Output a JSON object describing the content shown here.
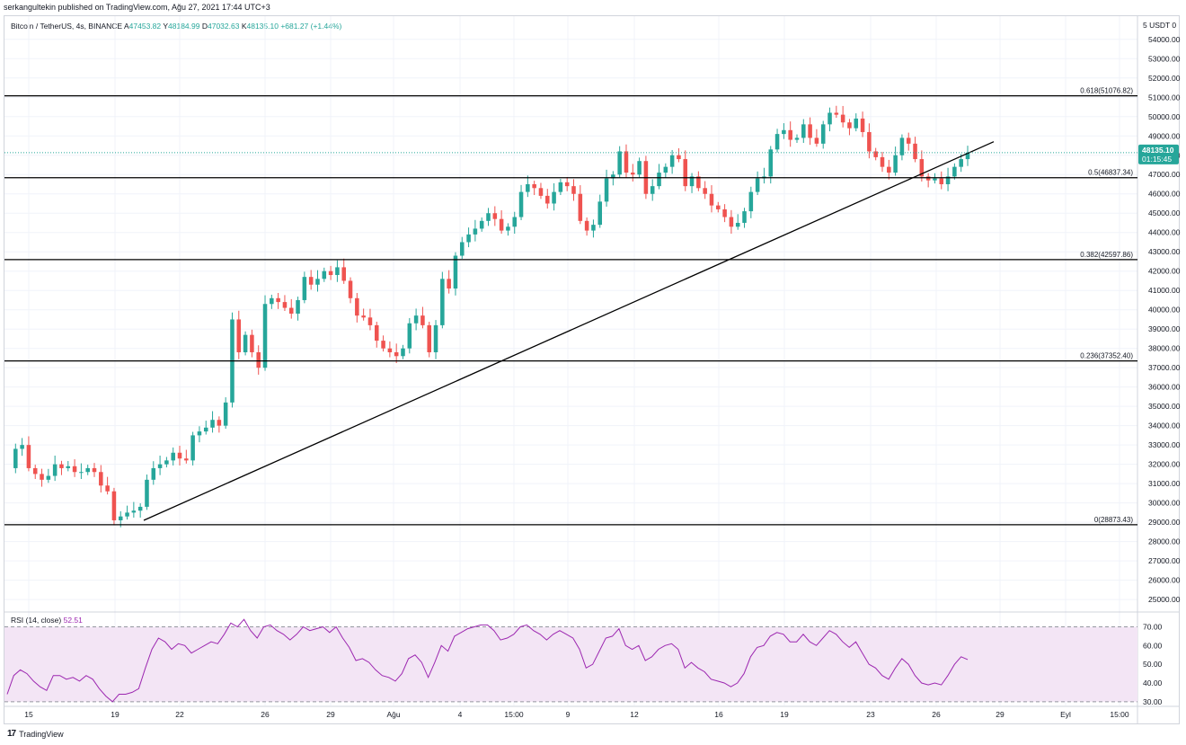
{
  "header": {
    "published_text": "serkangultekin published on TradingView.com, Ağu 27, 2021 17:44 UTC+3"
  },
  "legend": {
    "symbol": "Bitcoin / TetherUS, 4s, BINANCE",
    "o_label": "A",
    "o_value": "47453.82",
    "h_label": "Y",
    "h_value": "48184.99",
    "l_label": "D",
    "l_value": "47032.63",
    "c_label": "K",
    "c_value": "48135.10",
    "change": "+681.27 (+1.44%)"
  },
  "axis_header": "5  USDT 0",
  "price_tag": {
    "value": "48135.10",
    "countdown": "01:15:45"
  },
  "rsi": {
    "label": "RSI (14, close)",
    "value": "52.51"
  },
  "footer": {
    "brand": "TradingView",
    "logo": "17"
  },
  "colors": {
    "up": "#26a69a",
    "down": "#ef5350",
    "rsi_line": "#9c27b0",
    "rsi_band": "#f3e5f5",
    "level": "#000000"
  },
  "chart_data": {
    "type": "candlestick",
    "title": "Bitcoin / TetherUS, 4s, BINANCE",
    "y_ticks": [
      "25000.00",
      "26000.00",
      "27000.00",
      "28000.00",
      "29000.00",
      "30000.00",
      "31000.00",
      "32000.00",
      "33000.00",
      "34000.00",
      "35000.00",
      "36000.00",
      "37000.00",
      "38000.00",
      "39000.00",
      "40000.00",
      "41000.00",
      "42000.00",
      "43000.00",
      "44000.00",
      "45000.00",
      "46000.00",
      "47000.00",
      "48000.00",
      "49000.00",
      "50000.00",
      "51000.00",
      "52000.00",
      "53000.00",
      "54000.00"
    ],
    "ylim": [
      24400,
      55200
    ],
    "x_ticks": [
      "15",
      "19",
      "22",
      "26",
      "29",
      "Ağu",
      "4",
      "15:00",
      "9",
      "12",
      "16",
      "19",
      "23",
      "26",
      "29",
      "Eyl",
      "15:00"
    ],
    "fib_levels": [
      {
        "label": "0.618(51076.82)",
        "value": 51076.82
      },
      {
        "label": "0.5(46837.34)",
        "value": 46837.34
      },
      {
        "label": "0.382(42597.86)",
        "value": 42597.86
      },
      {
        "label": "0.236(37352.40)",
        "value": 37352.4
      },
      {
        "label": "0(28873.43)",
        "value": 28873.43
      }
    ],
    "trendline": {
      "from": 29100,
      "to": 48700
    },
    "close_path": [
      31800,
      32800,
      33000,
      31800,
      31500,
      31200,
      31400,
      32000,
      31800,
      31900,
      31600,
      31600,
      31800,
      31600,
      30900,
      30600,
      29100,
      29300,
      29500,
      29600,
      29800,
      31200,
      31800,
      32000,
      32200,
      32600,
      32300,
      32200,
      33500,
      33700,
      33900,
      34300,
      34000,
      35200,
      39500,
      37800,
      38700,
      37800,
      37000,
      40300,
      40600,
      40400,
      40100,
      39800,
      40500,
      41700,
      41300,
      41600,
      42000,
      41800,
      42200,
      41500,
      40600,
      39700,
      39600,
      39200,
      38400,
      38000,
      37800,
      37600,
      38000,
      39300,
      39700,
      39200,
      37800,
      39200,
      41600,
      41100,
      42800,
      43500,
      43900,
      44200,
      44600,
      45000,
      44700,
      44100,
      44300,
      44800,
      46100,
      46500,
      46300,
      45900,
      45500,
      46100,
      46600,
      46400,
      46000,
      44600,
      44100,
      44400,
      45600,
      46800,
      47000,
      48200,
      47100,
      47000,
      47700,
      46000,
      46400,
      47100,
      47400,
      48000,
      47800,
      46400,
      46900,
      46300,
      46000,
      45400,
      45200,
      44800,
      44300,
      44500,
      45100,
      46100,
      46800,
      46900,
      48300,
      49100,
      49300,
      48800,
      48900,
      49600,
      48900,
      48600,
      49600,
      50200,
      50100,
      49700,
      49400,
      49900,
      49200,
      48200,
      47900,
      47400,
      47100,
      48000,
      48900,
      48600,
      47800,
      46900,
      46700,
      46800,
      46500,
      46900,
      47400,
      47800,
      48135.1
    ],
    "rsi": {
      "ylim": [
        28,
        76
      ],
      "ticks": [
        "30.00",
        "40.00",
        "50.00",
        "60.00",
        "70.00"
      ],
      "band": [
        30,
        70
      ],
      "values": [
        34,
        44,
        47,
        45,
        41,
        38,
        36,
        44,
        44,
        42,
        43,
        41,
        44,
        42,
        37,
        33,
        30,
        34,
        34,
        35,
        37,
        48,
        58,
        64,
        62,
        58,
        61,
        60,
        56,
        58,
        60,
        62,
        61,
        66,
        72,
        70,
        74,
        68,
        64,
        70,
        71,
        68,
        66,
        63,
        66,
        70,
        68,
        69,
        70,
        67,
        70,
        64,
        59,
        52,
        53,
        51,
        47,
        44,
        43,
        41,
        45,
        53,
        55,
        51,
        43,
        51,
        60,
        57,
        65,
        67,
        69,
        70,
        71,
        71,
        68,
        63,
        64,
        66,
        70,
        71,
        68,
        66,
        63,
        66,
        68,
        66,
        64,
        58,
        48,
        50,
        57,
        64,
        65,
        69,
        60,
        58,
        60,
        52,
        54,
        58,
        60,
        61,
        58,
        48,
        51,
        48,
        46,
        42,
        41,
        40,
        38,
        40,
        45,
        54,
        59,
        60,
        65,
        67,
        66,
        62,
        62,
        66,
        62,
        60,
        64,
        68,
        66,
        62,
        59,
        62,
        56,
        50,
        48,
        44,
        42,
        48,
        53,
        50,
        44,
        40,
        39,
        40,
        39,
        44,
        50,
        54,
        52.51
      ]
    }
  }
}
